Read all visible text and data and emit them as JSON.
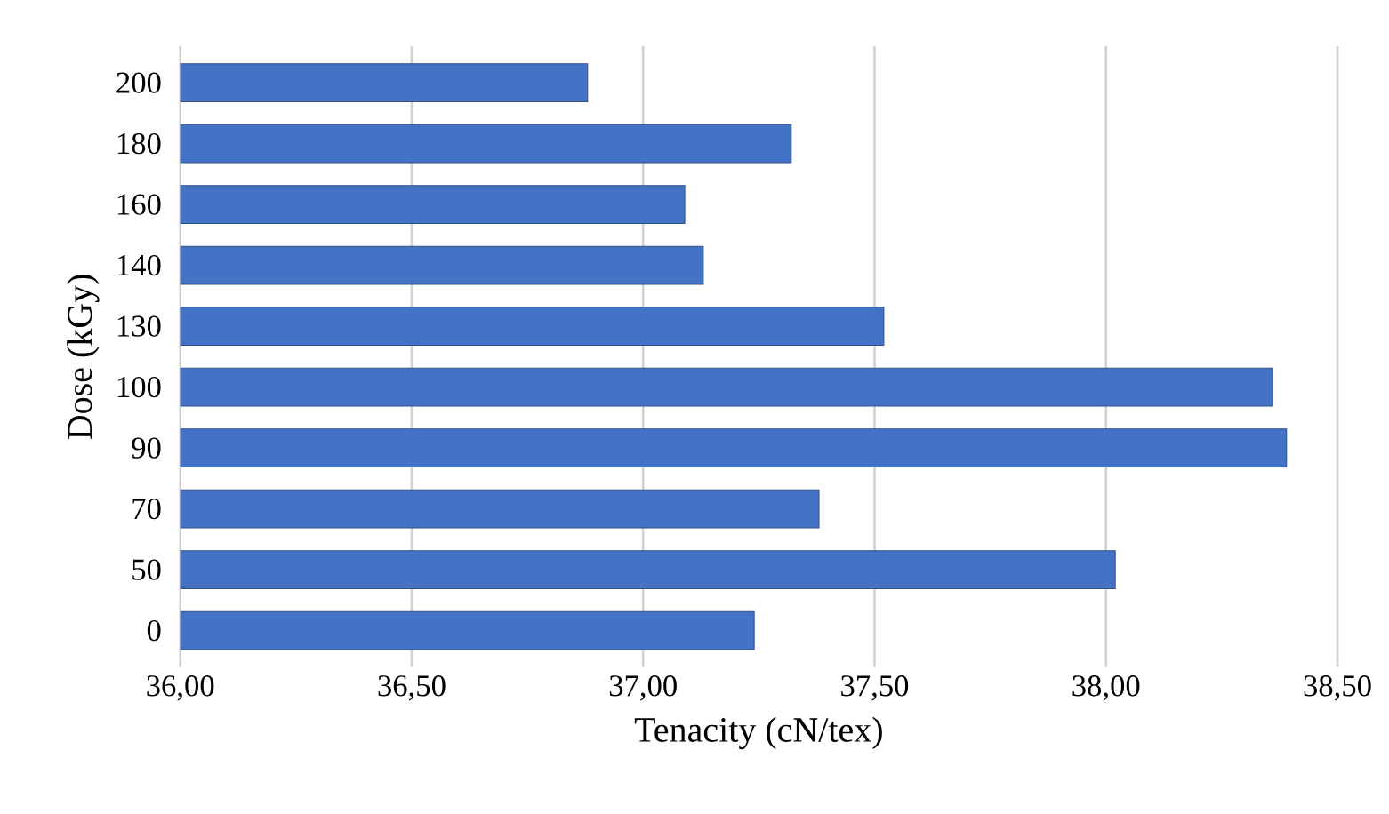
{
  "chart_data": {
    "type": "bar",
    "orientation": "horizontal",
    "xlabel": "Tenacity (cN/tex)",
    "ylabel": "Dose (kGy)",
    "categories": [
      "200",
      "180",
      "160",
      "140",
      "130",
      "100",
      "90",
      "70",
      "50",
      "0"
    ],
    "values": [
      36.88,
      37.32,
      37.09,
      37.13,
      37.52,
      38.36,
      38.39,
      37.38,
      38.02,
      37.24
    ],
    "color": "#4472c4",
    "xlim": [
      36,
      38.5
    ],
    "xticks": [
      {
        "value": 36,
        "label": "36,00"
      },
      {
        "value": 36.5,
        "label": "36,50"
      },
      {
        "value": 37,
        "label": "37,00"
      },
      {
        "value": 37.5,
        "label": "37,50"
      },
      {
        "value": 38,
        "label": "38,00"
      },
      {
        "value": 38.5,
        "label": "38,50"
      }
    ],
    "grid": "x"
  }
}
